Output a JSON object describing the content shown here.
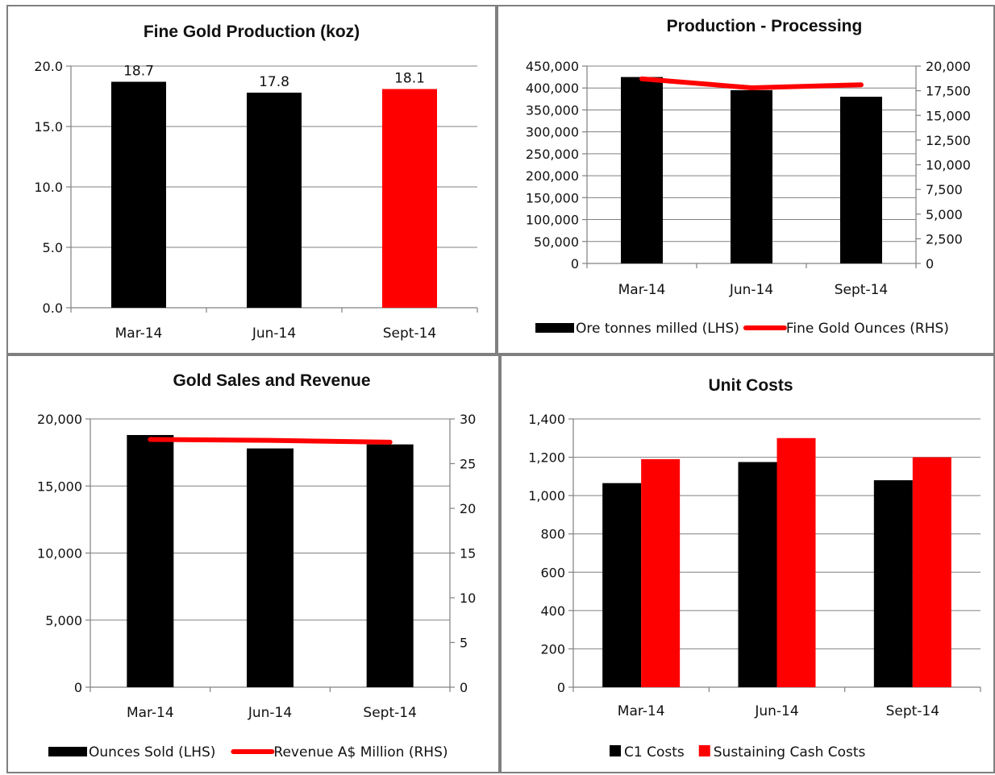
{
  "chart_data": [
    {
      "id": "fine_gold_production",
      "type": "bar",
      "title": "Fine Gold Production (koz)",
      "categories": [
        "Mar-14",
        "Jun-14",
        "Sept-14"
      ],
      "values": [
        18.7,
        17.8,
        18.1
      ],
      "data_labels": [
        "18.7",
        "17.8",
        "18.1"
      ],
      "bar_colors": [
        "#000000",
        "#000000",
        "#ff0000"
      ],
      "ylim": [
        0,
        20
      ],
      "yticks": [
        "0.0",
        "5.0",
        "10.0",
        "15.0",
        "20.0"
      ],
      "grid": true
    },
    {
      "id": "production_processing",
      "type": "bar+line",
      "title": "Production - Processing",
      "categories": [
        "Mar-14",
        "Jun-14",
        "Sept-14"
      ],
      "series": [
        {
          "name": "Ore tonnes milled (LHS)",
          "kind": "bar",
          "axis": "left",
          "color": "#000000",
          "values": [
            425000,
            395000,
            380000
          ]
        },
        {
          "name": "Fine Gold Ounces (RHS)",
          "kind": "line",
          "axis": "right",
          "color": "#ff0000",
          "values": [
            18700,
            17800,
            18100
          ]
        }
      ],
      "ylim_left": [
        0,
        450000
      ],
      "yticks_left": [
        "0",
        "50,000",
        "100,000",
        "150,000",
        "200,000",
        "250,000",
        "300,000",
        "350,000",
        "400,000",
        "450,000"
      ],
      "ylim_right": [
        0,
        20000
      ],
      "yticks_right": [
        "0",
        "2,500",
        "5,000",
        "7,500",
        "10,000",
        "12,500",
        "15,000",
        "17,500",
        "20,000"
      ],
      "grid": true,
      "legend": "bottom"
    },
    {
      "id": "gold_sales_revenue",
      "type": "bar+line",
      "title": "Gold Sales and Revenue",
      "categories": [
        "Mar-14",
        "Jun-14",
        "Sept-14"
      ],
      "series": [
        {
          "name": "Ounces Sold (LHS)",
          "kind": "bar",
          "axis": "left",
          "color": "#000000",
          "values": [
            18800,
            17800,
            18100
          ]
        },
        {
          "name": "Revenue A$ Million (RHS)",
          "kind": "line",
          "axis": "right",
          "color": "#ff0000",
          "values": [
            27.7,
            27.6,
            27.4
          ]
        }
      ],
      "ylim_left": [
        0,
        20000
      ],
      "yticks_left": [
        "0",
        "5,000",
        "10,000",
        "15,000",
        "20,000"
      ],
      "ylim_right": [
        0,
        30
      ],
      "yticks_right": [
        "0",
        "5",
        "10",
        "15",
        "20",
        "25",
        "30"
      ],
      "grid": true,
      "legend": "bottom"
    },
    {
      "id": "unit_costs",
      "type": "bar",
      "title": "Unit Costs",
      "categories": [
        "Mar-14",
        "Jun-14",
        "Sept-14"
      ],
      "series": [
        {
          "name": "C1 Costs",
          "color": "#000000",
          "values": [
            1065,
            1175,
            1080
          ]
        },
        {
          "name": "Sustaining Cash Costs",
          "color": "#ff0000",
          "values": [
            1190,
            1300,
            1200
          ]
        }
      ],
      "ylim": [
        0,
        1400
      ],
      "yticks": [
        "0",
        "200",
        "400",
        "600",
        "800",
        "1,000",
        "1,200",
        "1,400"
      ],
      "grid": true,
      "legend": "bottom"
    }
  ]
}
